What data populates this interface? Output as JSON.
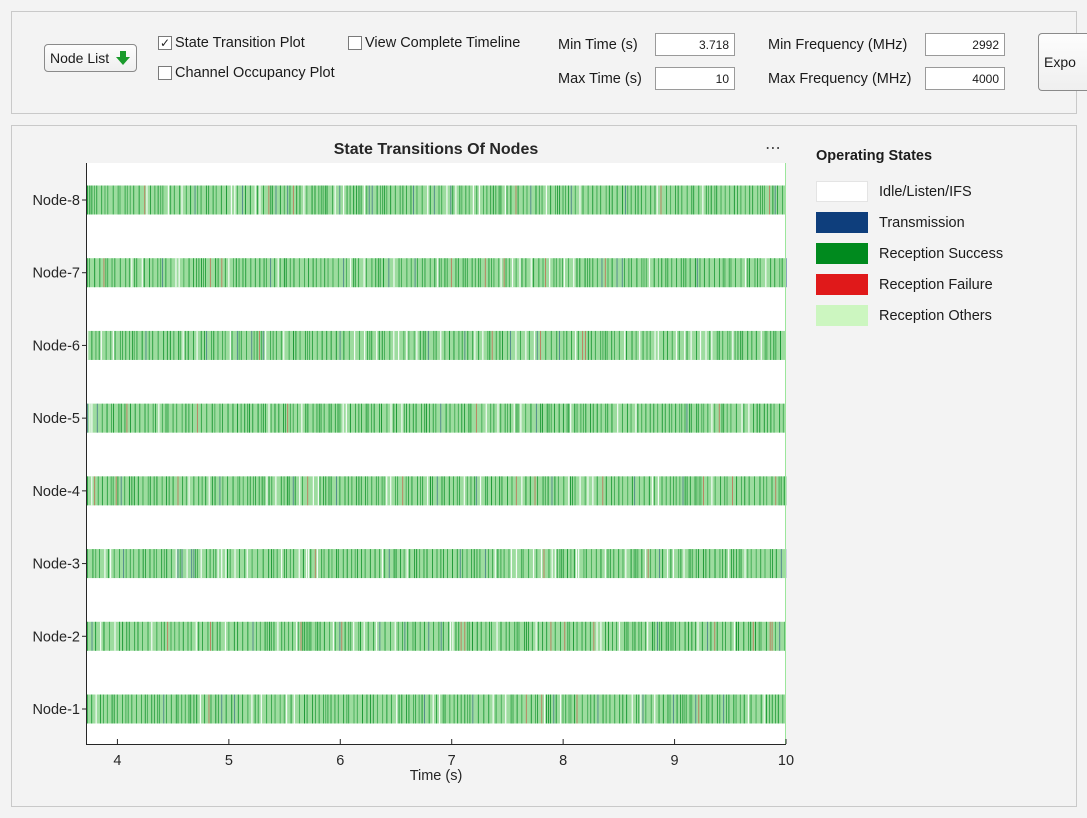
{
  "controls": {
    "node_list_label": "Node List",
    "export_label": "Expo",
    "state_transition_label": "State Transition Plot",
    "state_transition_checked": true,
    "channel_occupancy_label": "Channel Occupancy Plot",
    "channel_occupancy_checked": false,
    "complete_timeline_label": "View Complete Timeline",
    "complete_timeline_checked": false,
    "min_time_label": "Min Time (s)",
    "min_time_value": "3.718",
    "max_time_label": "Max Time (s)",
    "max_time_value": "10",
    "min_freq_label": "Min Frequency (MHz)",
    "min_freq_value": "2992",
    "max_freq_label": "Max Frequency (MHz)",
    "max_freq_value": "4000"
  },
  "axes_menu_label": "⋯",
  "legend": {
    "title": "Operating States",
    "items": [
      {
        "label": "Idle/Listen/IFS",
        "color": "#ffffff"
      },
      {
        "label": "Transmission",
        "color": "#0e3e7c"
      },
      {
        "label": "Reception Success",
        "color": "#008a1e"
      },
      {
        "label": "Reception Failure",
        "color": "#e0191a"
      },
      {
        "label": "Reception Others",
        "color": "#ccf6c0"
      }
    ]
  },
  "chart_data": {
    "type": "timeline",
    "title": "State Transitions Of Nodes",
    "xlabel": "Time (s)",
    "ylabel": "",
    "xlim": [
      3.718,
      10
    ],
    "xticks": [
      4,
      5,
      6,
      7,
      8,
      9,
      10
    ],
    "categories": [
      "Node-1",
      "Node-2",
      "Node-3",
      "Node-4",
      "Node-5",
      "Node-6",
      "Node-7",
      "Node-8"
    ],
    "series": [
      {
        "name": "Reception Others",
        "color": "#9ddc9f",
        "intervals": [
          [
            3.718,
            10
          ]
        ],
        "applies_to": "all"
      },
      {
        "name": "Reception Success",
        "color": "#008a1e",
        "pattern": "dense short events across interval"
      },
      {
        "name": "Transmission",
        "color": "#0e3e7c",
        "pattern": "sparse short events"
      },
      {
        "name": "Reception Failure",
        "color": "#e0191a",
        "pattern": "sparse short events"
      }
    ]
  }
}
